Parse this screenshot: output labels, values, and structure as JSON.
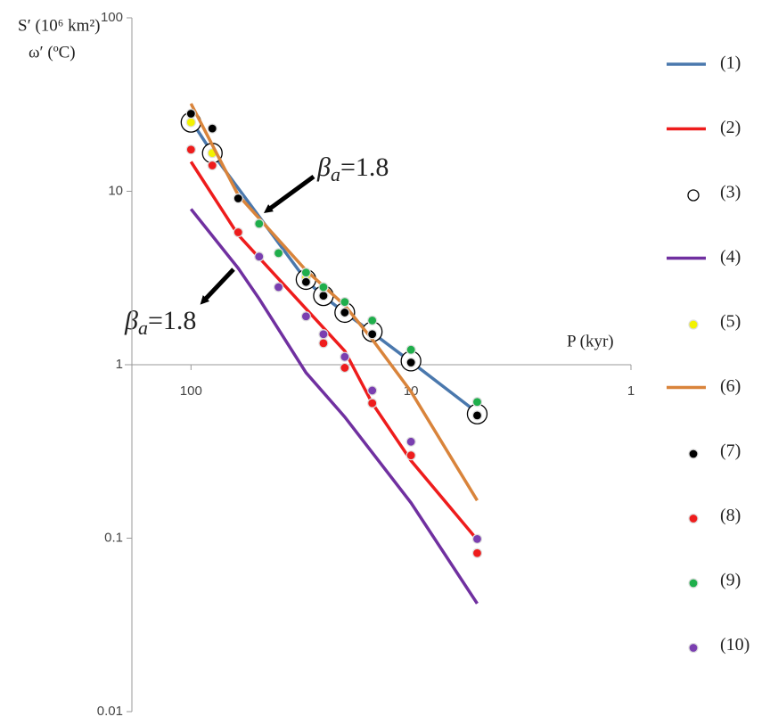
{
  "chart_data": {
    "type": "line",
    "y_label_1": "S′ (10⁶ km²)",
    "y_label_2": "ω′ (ºC)",
    "x_label": "P (kyr)",
    "log_x": true,
    "log_y": true,
    "x_reversed": true,
    "xlim": [
      200,
      1
    ],
    "xticks": [
      100,
      10,
      1
    ],
    "ylim": [
      0.01,
      100
    ],
    "yticks": [
      100,
      10,
      1,
      0.1,
      0.01
    ],
    "legend": "right",
    "series": [
      {
        "name": "(1)",
        "style": "line",
        "color": "#4a78ad",
        "x": [
          100,
          80,
          30,
          25,
          20,
          15,
          10,
          5
        ],
        "values": [
          25.7,
          16.6,
          3.07,
          2.48,
          2.0,
          1.53,
          1.04,
          0.53
        ]
      },
      {
        "name": "(2)",
        "style": "line",
        "color": "#ee1c1c",
        "x": [
          100,
          61,
          30,
          20,
          15,
          10,
          5
        ],
        "values": [
          14.8,
          5.6,
          2.1,
          1.2,
          0.6,
          0.28,
          0.098
        ]
      },
      {
        "name": "(3)",
        "style": "circle",
        "color": "#000000",
        "x": [
          100,
          80,
          30,
          25,
          20,
          15,
          10,
          5
        ],
        "values": [
          25,
          16.6,
          3.1,
          2.5,
          2.0,
          1.55,
          1.05,
          0.52
        ]
      },
      {
        "name": "(4)",
        "style": "line",
        "color": "#7030a0",
        "x": [
          100,
          61,
          49,
          30,
          20,
          10,
          5
        ],
        "values": [
          7.9,
          3.6,
          2.4,
          0.9,
          0.5,
          0.16,
          0.042
        ]
      },
      {
        "name": "(5)",
        "style": "dot",
        "color": "#f2f200",
        "x": [
          100,
          80,
          30
        ],
        "values": [
          25,
          16.6,
          3.2
        ]
      },
      {
        "name": "(6)",
        "style": "line",
        "color": "#d9843b",
        "x": [
          100,
          61,
          30,
          20,
          15,
          10,
          5
        ],
        "values": [
          32,
          9.5,
          3.5,
          2.2,
          1.4,
          0.7,
          0.165
        ]
      },
      {
        "name": "(7)",
        "style": "dot",
        "color": "#000000",
        "x": [
          100,
          80,
          61,
          30,
          25,
          20,
          15,
          10,
          5
        ],
        "values": [
          28,
          23,
          9.1,
          3.0,
          2.5,
          2.0,
          1.5,
          1.03,
          0.51
        ]
      },
      {
        "name": "(8)",
        "style": "dot",
        "color": "#ee1c1c",
        "x": [
          100,
          80,
          61,
          25,
          20,
          15,
          10,
          5
        ],
        "values": [
          17.4,
          14.1,
          5.8,
          1.33,
          0.96,
          0.6,
          0.3,
          0.082
        ]
      },
      {
        "name": "(9)",
        "style": "dot",
        "color": "#1fae4b",
        "x": [
          49,
          40,
          30,
          25,
          20,
          15,
          10,
          5
        ],
        "values": [
          6.5,
          4.4,
          3.4,
          2.8,
          2.3,
          1.8,
          1.22,
          0.61
        ]
      },
      {
        "name": "(10)",
        "style": "dot",
        "color": "#7a3fb0",
        "x": [
          49,
          40,
          30,
          25,
          20,
          15,
          10,
          5
        ],
        "values": [
          4.2,
          2.8,
          1.9,
          1.5,
          1.11,
          0.71,
          0.36,
          0.099
        ]
      }
    ],
    "annotations": [
      {
        "base": "β",
        "subscript": "a",
        "text": "=1.8"
      },
      {
        "base": "β",
        "subscript": "a",
        "text": "=1.8"
      }
    ]
  }
}
